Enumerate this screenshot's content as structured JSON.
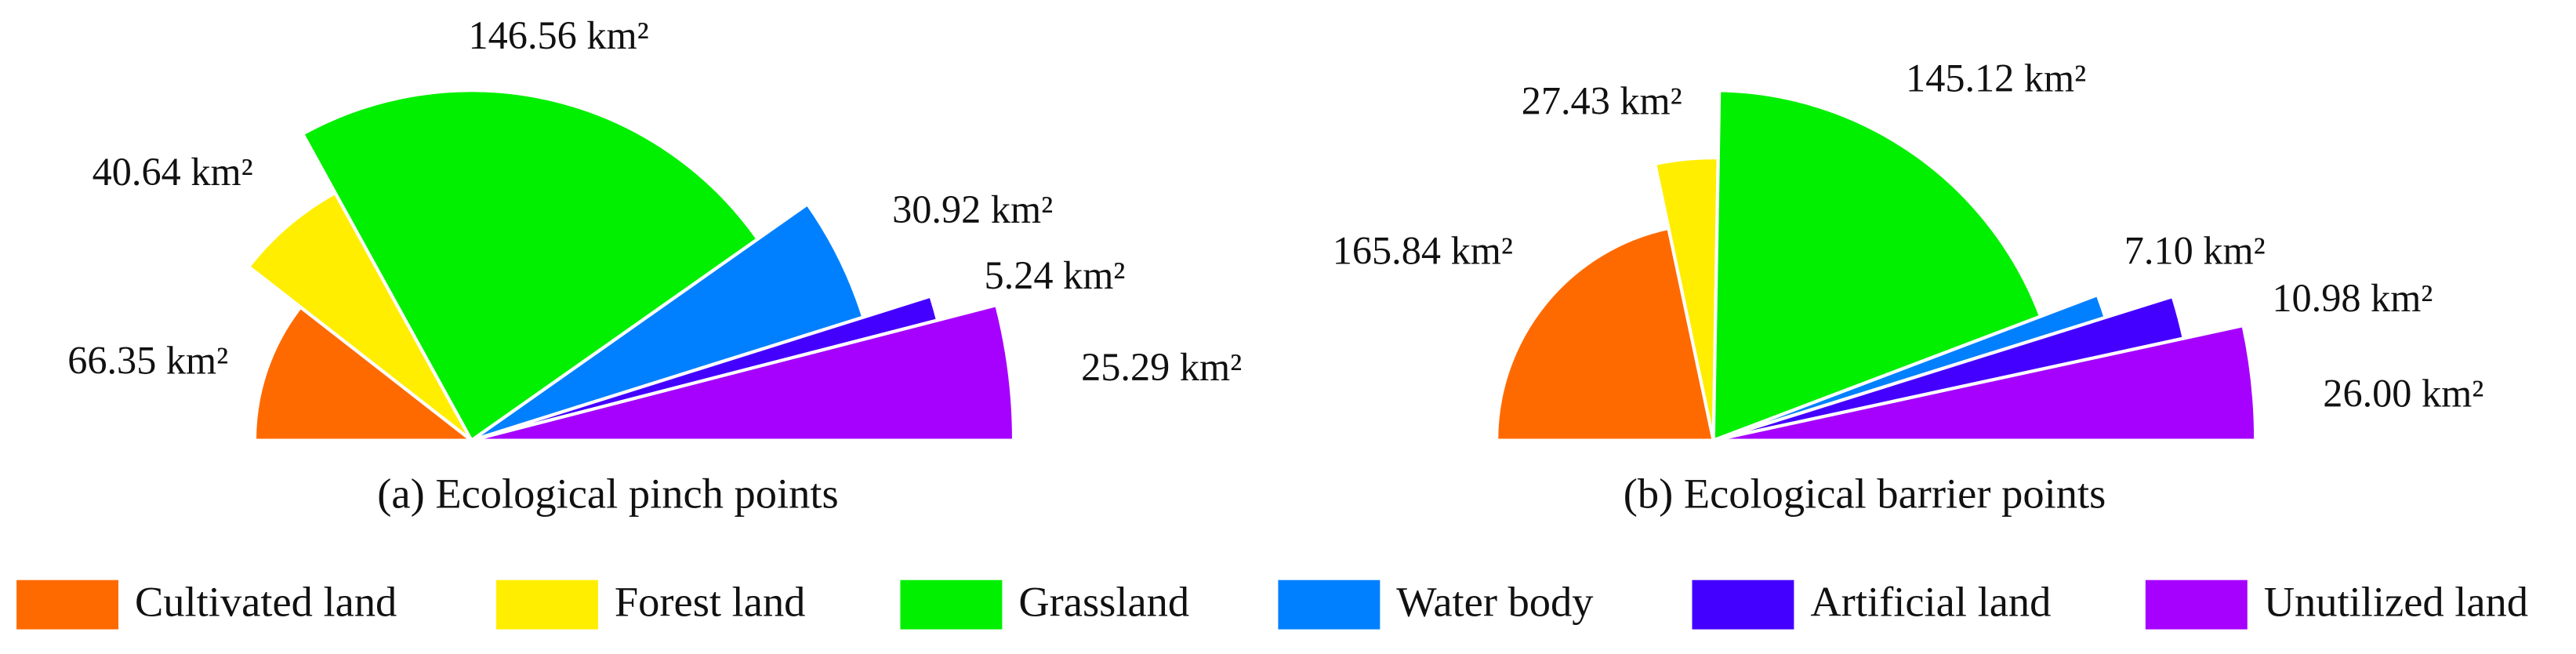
{
  "chart_data": [
    {
      "type": "rose",
      "title": "(a) Ecological pinch points",
      "categories": [
        "Cultivated land",
        "Forest land",
        "Grassland",
        "Water body",
        "Artificial land",
        "Unutilized land"
      ],
      "colors": [
        "#ff6a00",
        "#ffee00",
        "#00f000",
        "#0080ff",
        "#4400ff",
        "#a600ff"
      ],
      "values": [
        66.35,
        40.64,
        146.56,
        30.92,
        5.24,
        25.29
      ],
      "value_labels": [
        "66.35 km²",
        "40.64 km²",
        "146.56 km²",
        "30.92 km²",
        "5.24 km²",
        "25.29 km²"
      ]
    },
    {
      "type": "rose",
      "title": "(b) Ecological barrier points",
      "categories": [
        "Cultivated land",
        "Forest land",
        "Grassland",
        "Water body",
        "Artificial land",
        "Unutilized land"
      ],
      "colors": [
        "#ff6a00",
        "#ffee00",
        "#00f000",
        "#0080ff",
        "#4400ff",
        "#a600ff"
      ],
      "values": [
        165.84,
        27.43,
        145.12,
        7.1,
        10.98,
        26.0
      ],
      "value_labels": [
        "165.84 km²",
        "27.43 km²",
        "145.12 km²",
        "7.10 km²",
        "10.98 km²",
        "26.00 km²"
      ]
    }
  ]
}
